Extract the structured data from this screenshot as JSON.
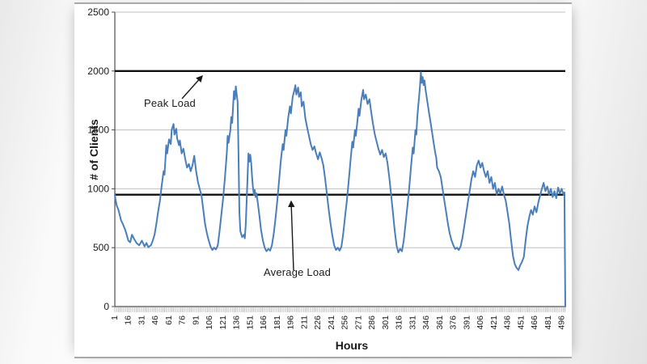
{
  "colors": {
    "series": "#4a7ebb",
    "gridline": "#bfbfbf",
    "axis": "#4d4d4d",
    "reference_line": "#111111",
    "tick_band": "#a6a6a6",
    "text": "#1a1a1a",
    "panel_border": "#a9a9a9"
  },
  "chart_data": {
    "type": "line",
    "title": "",
    "xlabel": "Hours",
    "ylabel": "# of Clients",
    "xlim": [
      1,
      500
    ],
    "ylim": [
      0,
      2500
    ],
    "grid": "horizontal",
    "legend": "none",
    "y_ticks": [
      0,
      500,
      1000,
      1500,
      2000,
      2500
    ],
    "x_tick_labels": [
      1,
      16,
      31,
      46,
      61,
      76,
      91,
      106,
      121,
      136,
      151,
      166,
      181,
      196,
      211,
      226,
      241,
      256,
      271,
      286,
      301,
      316,
      331,
      346,
      361,
      376,
      391,
      406,
      421,
      436,
      451,
      466,
      481,
      496
    ],
    "annotations": [
      {
        "label": "Peak Load",
        "value": 2000
      },
      {
        "label": "Average Load",
        "value": 950
      }
    ],
    "series": [
      {
        "name": "# of Clients",
        "color": "#4a7ebb",
        "points": [
          [
            1,
            950
          ],
          [
            2,
            900
          ],
          [
            3,
            860
          ],
          [
            5,
            820
          ],
          [
            8,
            730
          ],
          [
            10,
            700
          ],
          [
            13,
            640
          ],
          [
            16,
            560
          ],
          [
            18,
            545
          ],
          [
            20,
            610
          ],
          [
            22,
            580
          ],
          [
            25,
            540
          ],
          [
            28,
            520
          ],
          [
            31,
            560
          ],
          [
            34,
            510
          ],
          [
            36,
            540
          ],
          [
            38,
            505
          ],
          [
            41,
            520
          ],
          [
            43,
            560
          ],
          [
            45,
            610
          ],
          [
            47,
            700
          ],
          [
            49,
            810
          ],
          [
            51,
            900
          ],
          [
            53,
            1030
          ],
          [
            55,
            1150
          ],
          [
            56,
            1120
          ],
          [
            58,
            1370
          ],
          [
            59,
            1300
          ],
          [
            61,
            1420
          ],
          [
            63,
            1380
          ],
          [
            64,
            1500
          ],
          [
            66,
            1550
          ],
          [
            67,
            1460
          ],
          [
            69,
            1510
          ],
          [
            70,
            1430
          ],
          [
            72,
            1370
          ],
          [
            73,
            1410
          ],
          [
            75,
            1300
          ],
          [
            77,
            1340
          ],
          [
            79,
            1250
          ],
          [
            81,
            1180
          ],
          [
            83,
            1210
          ],
          [
            85,
            1150
          ],
          [
            87,
            1200
          ],
          [
            89,
            1280
          ],
          [
            91,
            1150
          ],
          [
            93,
            1060
          ],
          [
            95,
            1000
          ],
          [
            97,
            940
          ],
          [
            99,
            820
          ],
          [
            101,
            700
          ],
          [
            103,
            620
          ],
          [
            105,
            560
          ],
          [
            107,
            510
          ],
          [
            109,
            480
          ],
          [
            111,
            500
          ],
          [
            113,
            485
          ],
          [
            115,
            520
          ],
          [
            117,
            640
          ],
          [
            119,
            780
          ],
          [
            121,
            920
          ],
          [
            123,
            1100
          ],
          [
            125,
            1300
          ],
          [
            126,
            1450
          ],
          [
            127,
            1390
          ],
          [
            129,
            1500
          ],
          [
            130,
            1610
          ],
          [
            131,
            1560
          ],
          [
            132,
            1700
          ],
          [
            133,
            1830
          ],
          [
            134,
            1760
          ],
          [
            135,
            1870
          ],
          [
            136,
            1800
          ],
          [
            137,
            1740
          ],
          [
            138,
            1300
          ],
          [
            139,
            800
          ],
          [
            140,
            640
          ],
          [
            142,
            590
          ],
          [
            144,
            610
          ],
          [
            145,
            580
          ],
          [
            146,
            700
          ],
          [
            147,
            900
          ],
          [
            148,
            1100
          ],
          [
            149,
            1300
          ],
          [
            150,
            1230
          ],
          [
            151,
            1290
          ],
          [
            152,
            1220
          ],
          [
            153,
            1100
          ],
          [
            154,
            1010
          ],
          [
            155,
            950
          ],
          [
            156,
            990
          ],
          [
            157,
            930
          ],
          [
            158,
            960
          ],
          [
            159,
            900
          ],
          [
            161,
            780
          ],
          [
            163,
            650
          ],
          [
            165,
            560
          ],
          [
            167,
            500
          ],
          [
            169,
            470
          ],
          [
            171,
            490
          ],
          [
            173,
            475
          ],
          [
            175,
            520
          ],
          [
            177,
            620
          ],
          [
            179,
            750
          ],
          [
            181,
            900
          ],
          [
            183,
            1080
          ],
          [
            185,
            1250
          ],
          [
            187,
            1380
          ],
          [
            188,
            1330
          ],
          [
            190,
            1500
          ],
          [
            191,
            1450
          ],
          [
            193,
            1600
          ],
          [
            195,
            1700
          ],
          [
            196,
            1640
          ],
          [
            198,
            1780
          ],
          [
            200,
            1840
          ],
          [
            201,
            1880
          ],
          [
            202,
            1800
          ],
          [
            204,
            1860
          ],
          [
            205,
            1780
          ],
          [
            207,
            1820
          ],
          [
            208,
            1700
          ],
          [
            210,
            1740
          ],
          [
            212,
            1600
          ],
          [
            214,
            1520
          ],
          [
            216,
            1450
          ],
          [
            218,
            1380
          ],
          [
            220,
            1330
          ],
          [
            222,
            1360
          ],
          [
            224,
            1300
          ],
          [
            226,
            1250
          ],
          [
            228,
            1310
          ],
          [
            230,
            1260
          ],
          [
            232,
            1200
          ],
          [
            234,
            1080
          ],
          [
            236,
            950
          ],
          [
            238,
            820
          ],
          [
            240,
            700
          ],
          [
            242,
            600
          ],
          [
            244,
            520
          ],
          [
            246,
            480
          ],
          [
            248,
            500
          ],
          [
            250,
            475
          ],
          [
            252,
            510
          ],
          [
            254,
            620
          ],
          [
            256,
            760
          ],
          [
            258,
            900
          ],
          [
            260,
            1060
          ],
          [
            262,
            1230
          ],
          [
            264,
            1400
          ],
          [
            265,
            1350
          ],
          [
            267,
            1500
          ],
          [
            268,
            1450
          ],
          [
            270,
            1600
          ],
          [
            271,
            1680
          ],
          [
            272,
            1620
          ],
          [
            274,
            1750
          ],
          [
            276,
            1840
          ],
          [
            277,
            1760
          ],
          [
            279,
            1800
          ],
          [
            281,
            1720
          ],
          [
            283,
            1760
          ],
          [
            285,
            1650
          ],
          [
            287,
            1550
          ],
          [
            289,
            1460
          ],
          [
            291,
            1400
          ],
          [
            293,
            1340
          ],
          [
            295,
            1290
          ],
          [
            297,
            1330
          ],
          [
            299,
            1270
          ],
          [
            301,
            1300
          ],
          [
            303,
            1220
          ],
          [
            305,
            1100
          ],
          [
            307,
            950
          ],
          [
            309,
            800
          ],
          [
            311,
            650
          ],
          [
            313,
            520
          ],
          [
            315,
            460
          ],
          [
            317,
            490
          ],
          [
            319,
            470
          ],
          [
            321,
            560
          ],
          [
            323,
            700
          ],
          [
            325,
            850
          ],
          [
            327,
            1000
          ],
          [
            329,
            1180
          ],
          [
            331,
            1350
          ],
          [
            332,
            1300
          ],
          [
            334,
            1500
          ],
          [
            335,
            1460
          ],
          [
            336,
            1600
          ],
          [
            337,
            1700
          ],
          [
            338,
            1780
          ],
          [
            339,
            1870
          ],
          [
            340,
            1990
          ],
          [
            341,
            1900
          ],
          [
            342,
            1950
          ],
          [
            343,
            1880
          ],
          [
            344,
            1920
          ],
          [
            345,
            1850
          ],
          [
            347,
            1750
          ],
          [
            349,
            1650
          ],
          [
            351,
            1550
          ],
          [
            353,
            1450
          ],
          [
            355,
            1350
          ],
          [
            356,
            1300
          ],
          [
            357,
            1265
          ],
          [
            358,
            1180
          ],
          [
            360,
            1150
          ],
          [
            362,
            1100
          ],
          [
            364,
            1000
          ],
          [
            366,
            900
          ],
          [
            368,
            800
          ],
          [
            370,
            700
          ],
          [
            372,
            620
          ],
          [
            374,
            560
          ],
          [
            376,
            520
          ],
          [
            378,
            490
          ],
          [
            380,
            500
          ],
          [
            382,
            480
          ],
          [
            384,
            510
          ],
          [
            386,
            580
          ],
          [
            388,
            680
          ],
          [
            390,
            780
          ],
          [
            392,
            880
          ],
          [
            394,
            980
          ],
          [
            396,
            1080
          ],
          [
            398,
            1150
          ],
          [
            400,
            1100
          ],
          [
            402,
            1200
          ],
          [
            404,
            1240
          ],
          [
            406,
            1180
          ],
          [
            408,
            1220
          ],
          [
            410,
            1150
          ],
          [
            412,
            1100
          ],
          [
            414,
            1150
          ],
          [
            416,
            1050
          ],
          [
            418,
            1100
          ],
          [
            420,
            1000
          ],
          [
            422,
            1050
          ],
          [
            424,
            950
          ],
          [
            426,
            1000
          ],
          [
            428,
            960
          ],
          [
            430,
            1020
          ],
          [
            432,
            950
          ],
          [
            434,
            900
          ],
          [
            436,
            800
          ],
          [
            438,
            700
          ],
          [
            440,
            560
          ],
          [
            442,
            430
          ],
          [
            444,
            360
          ],
          [
            446,
            330
          ],
          [
            448,
            310
          ],
          [
            450,
            350
          ],
          [
            452,
            380
          ],
          [
            454,
            420
          ],
          [
            456,
            560
          ],
          [
            458,
            680
          ],
          [
            460,
            760
          ],
          [
            462,
            820
          ],
          [
            464,
            780
          ],
          [
            466,
            850
          ],
          [
            468,
            800
          ],
          [
            470,
            880
          ],
          [
            472,
            940
          ],
          [
            474,
            1000
          ],
          [
            476,
            1050
          ],
          [
            478,
            980
          ],
          [
            480,
            1020
          ],
          [
            482,
            950
          ],
          [
            484,
            1000
          ],
          [
            486,
            930
          ],
          [
            488,
            980
          ],
          [
            490,
            920
          ],
          [
            492,
            1010
          ],
          [
            494,
            960
          ],
          [
            496,
            1000
          ],
          [
            498,
            950
          ],
          [
            499,
            970
          ],
          [
            500,
            0
          ]
        ]
      }
    ]
  }
}
